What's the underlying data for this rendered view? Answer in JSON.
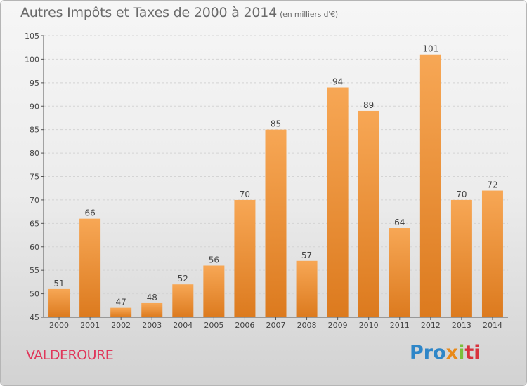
{
  "header": {
    "title": "Autres Impôts et Taxes de 2000 à 2014",
    "subtitle": "(en milliers d'€)"
  },
  "footer": {
    "commune": "VALDEROURE",
    "logo_parts": [
      "Pro",
      "x",
      "i",
      "ti"
    ]
  },
  "colors": {
    "bar_light": "#f7a755",
    "bar_dark": "#dc7a1e",
    "commune_text": "#e0365a"
  },
  "chart_data": {
    "type": "bar",
    "title": "Autres Impôts et Taxes de 2000 à 2014",
    "subtitle": "(en milliers d'€)",
    "xlabel": "",
    "ylabel": "",
    "categories": [
      "2000",
      "2001",
      "2002",
      "2003",
      "2004",
      "2005",
      "2006",
      "2007",
      "2008",
      "2009",
      "2010",
      "2011",
      "2012",
      "2013",
      "2014"
    ],
    "values": [
      51,
      66,
      47,
      48,
      52,
      56,
      70,
      85,
      57,
      94,
      89,
      64,
      101,
      70,
      72
    ],
    "ylim": [
      45,
      105
    ],
    "yticks": [
      45,
      50,
      55,
      60,
      65,
      70,
      75,
      80,
      85,
      90,
      95,
      100,
      105
    ],
    "grid": true,
    "legend": "none"
  }
}
